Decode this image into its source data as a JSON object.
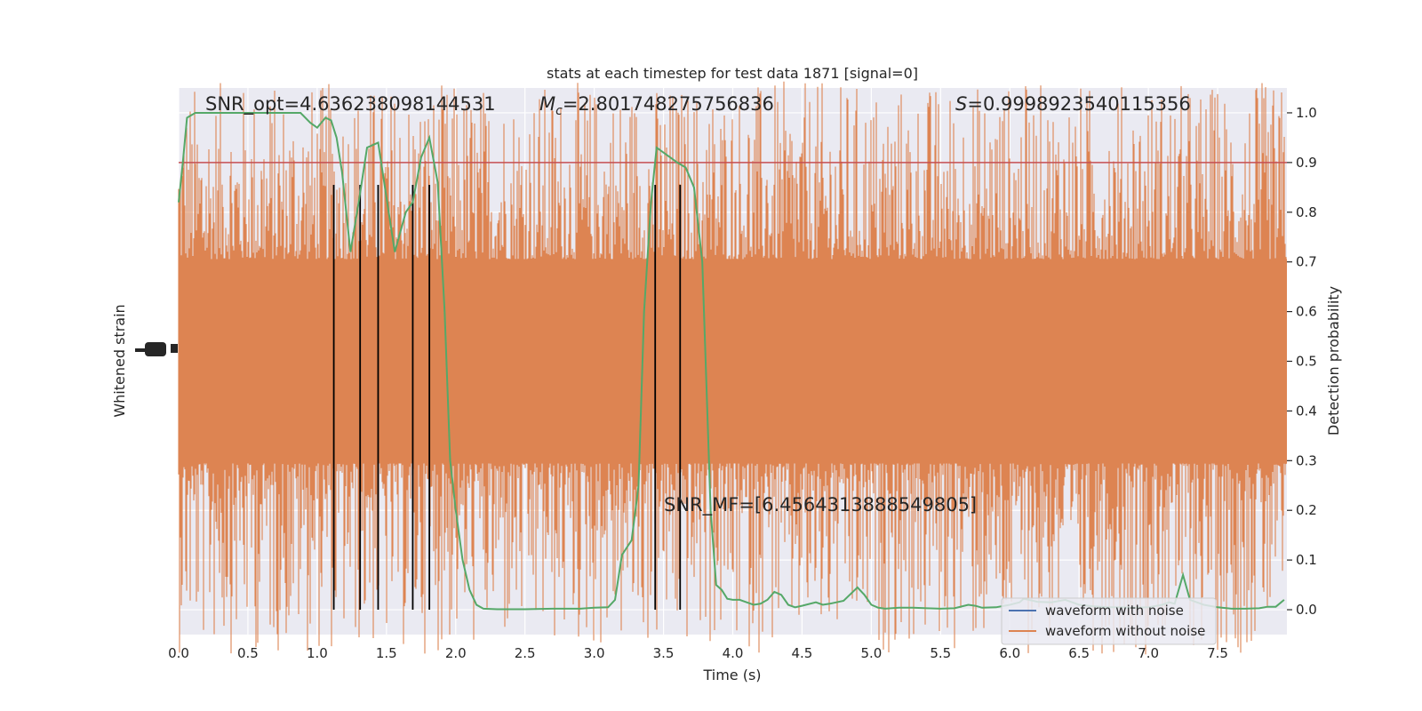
{
  "chart_data": {
    "type": "line",
    "title": "stats at each timestep for test data 1871 [signal=0]",
    "xlabel": "Time (s)",
    "ylabel_left": "Whitened strain",
    "ylabel_right": "Detection probability",
    "xlim": [
      0.0,
      8.0
    ],
    "ylim_right": [
      -0.05,
      1.05
    ],
    "x_ticks": [
      "0.0",
      "0.5",
      "1.0",
      "1.5",
      "2.0",
      "2.5",
      "3.0",
      "3.5",
      "4.0",
      "4.5",
      "5.0",
      "5.5",
      "6.0",
      "6.5",
      "7.0",
      "7.5"
    ],
    "y_ticks_right": [
      "0.0",
      "0.1",
      "0.2",
      "0.3",
      "0.4",
      "0.5",
      "0.6",
      "0.7",
      "0.8",
      "0.9",
      "1.0"
    ],
    "grid": true,
    "legend_position": "lower-right",
    "annotations": {
      "snr_opt": "SNR_opt=4.636238098144531",
      "mc_symbol": "M",
      "mc_sub": "c",
      "mc_value": "=2.801748275756836",
      "s_symbol": "S",
      "s_value": "=0.9998923540115356",
      "snr_mf": "SNR_MF=[6.4564313888549805]"
    },
    "threshold": 0.9,
    "event_lines_x": [
      1.12,
      1.31,
      1.44,
      1.69,
      1.81,
      3.44,
      3.62
    ],
    "series": [
      {
        "name": "waveform with noise",
        "color": "#4c72b0",
        "values": []
      },
      {
        "name": "waveform without noise",
        "color": "#dd8452",
        "values": []
      },
      {
        "color": "#55a868",
        "x": [
          0.0,
          0.03,
          0.06,
          0.12,
          0.2,
          0.3,
          0.4,
          0.5,
          0.6,
          0.7,
          0.8,
          0.88,
          0.95,
          1.0,
          1.06,
          1.1,
          1.14,
          1.18,
          1.24,
          1.3,
          1.36,
          1.44,
          1.5,
          1.56,
          1.6,
          1.64,
          1.69,
          1.75,
          1.81,
          1.87,
          1.92,
          1.96,
          2.0,
          2.05,
          2.1,
          2.15,
          2.2,
          2.3,
          2.5,
          2.7,
          2.9,
          3.0,
          3.1,
          3.15,
          3.2,
          3.27,
          3.32,
          3.36,
          3.41,
          3.45,
          3.5,
          3.55,
          3.6,
          3.66,
          3.72,
          3.78,
          3.84,
          3.88,
          3.92,
          3.96,
          4.0,
          4.05,
          4.1,
          4.15,
          4.2,
          4.25,
          4.3,
          4.35,
          4.4,
          4.45,
          4.5,
          4.6,
          4.65,
          4.7,
          4.8,
          4.9,
          4.95,
          5.0,
          5.05,
          5.1,
          5.2,
          5.3,
          5.4,
          5.5,
          5.6,
          5.7,
          5.75,
          5.8,
          5.9,
          6.0,
          6.07,
          6.1,
          6.2,
          6.3,
          6.4,
          6.5,
          6.6,
          6.7,
          6.8,
          6.9,
          7.0,
          7.1,
          7.15,
          7.19,
          7.25,
          7.3,
          7.4,
          7.5,
          7.6,
          7.7,
          7.8,
          7.86,
          7.92,
          7.98
        ],
        "y": [
          0.82,
          0.9,
          0.99,
          1.0,
          1.0,
          1.0,
          1.0,
          1.0,
          1.0,
          1.0,
          1.0,
          1.0,
          0.98,
          0.97,
          0.99,
          0.985,
          0.95,
          0.88,
          0.72,
          0.82,
          0.93,
          0.94,
          0.83,
          0.72,
          0.76,
          0.8,
          0.82,
          0.91,
          0.95,
          0.86,
          0.6,
          0.3,
          0.2,
          0.1,
          0.04,
          0.01,
          0.002,
          0.001,
          0.001,
          0.002,
          0.002,
          0.004,
          0.005,
          0.02,
          0.11,
          0.14,
          0.25,
          0.6,
          0.82,
          0.93,
          0.92,
          0.91,
          0.9,
          0.89,
          0.85,
          0.7,
          0.2,
          0.05,
          0.04,
          0.022,
          0.02,
          0.02,
          0.015,
          0.01,
          0.012,
          0.02,
          0.036,
          0.03,
          0.01,
          0.005,
          0.008,
          0.015,
          0.01,
          0.012,
          0.018,
          0.045,
          0.03,
          0.01,
          0.004,
          0.002,
          0.004,
          0.004,
          0.003,
          0.002,
          0.003,
          0.01,
          0.008,
          0.004,
          0.005,
          0.01,
          0.015,
          0.022,
          0.016,
          0.015,
          0.02,
          0.01,
          0.007,
          0.005,
          0.005,
          0.004,
          0.005,
          0.01,
          0.015,
          0.012,
          0.07,
          0.02,
          0.01,
          0.005,
          0.002,
          0.002,
          0.003,
          0.006,
          0.006,
          0.02
        ]
      }
    ]
  }
}
